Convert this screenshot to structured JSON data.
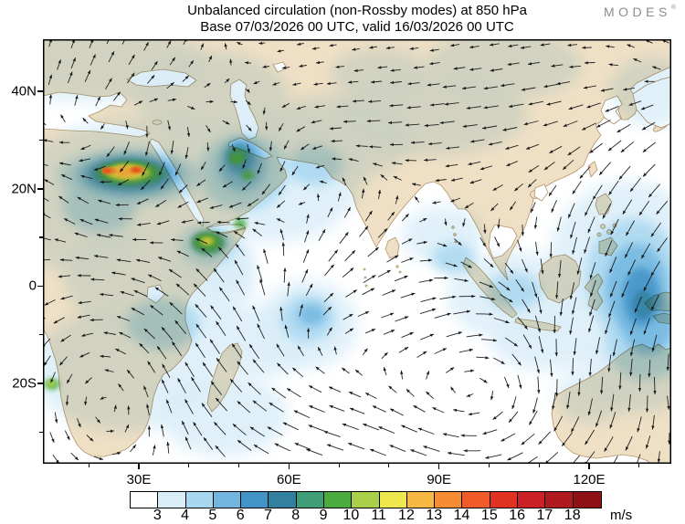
{
  "header": {
    "title_line1": "Unbalanced circulation (non-Rossby modes) at 850 hPa",
    "title_line2": "Base 07/03/2026 00 UTC, valid 16/03/2026 00 UTC",
    "brand": "MODES",
    "brand_mark": "®"
  },
  "axes": {
    "lat_ticks": [
      {
        "label": "40N",
        "lat": 40
      },
      {
        "label": "20N",
        "lat": 20
      },
      {
        "label": "0",
        "lat": 0
      },
      {
        "label": "20S",
        "lat": -20
      }
    ],
    "lon_ticks": [
      {
        "label": "30E",
        "lon": 30
      },
      {
        "label": "60E",
        "lon": 60
      },
      {
        "label": "90E",
        "lon": 90
      },
      {
        "label": "120E",
        "lon": 120
      }
    ]
  },
  "colorbar": {
    "unit": "m/s",
    "tick_labels": [
      "3",
      "4",
      "5",
      "6",
      "7",
      "8",
      "9",
      "10",
      "11",
      "12",
      "13",
      "14",
      "15",
      "16",
      "17",
      "18"
    ],
    "colors": [
      "#ffffff",
      "#d9edf8",
      "#a8d7f0",
      "#72b6e0",
      "#4293c7",
      "#31809f",
      "#3f9d78",
      "#4aab3f",
      "#aad04b",
      "#eee74d",
      "#f8b844",
      "#f68c33",
      "#f15b2a",
      "#e13221",
      "#cb2026",
      "#b0191d",
      "#8e1215"
    ]
  },
  "map_colors": {
    "land": "#efe0c5",
    "coast": "#b3946a",
    "ocean": "#ffffff",
    "arrow": "#111111"
  }
}
